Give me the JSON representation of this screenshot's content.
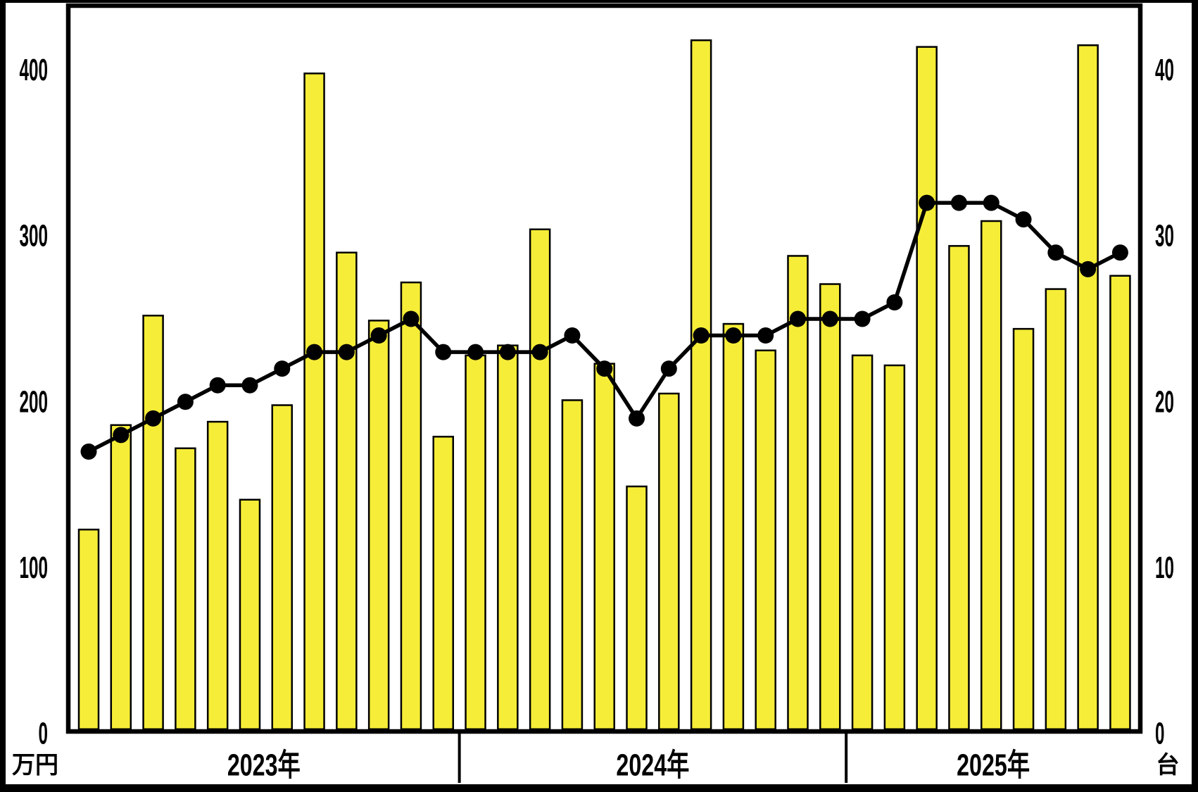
{
  "chart_data": {
    "type": "bar+line",
    "title": "",
    "left_axis": {
      "label": "万円",
      "ticks": [
        "0",
        "100",
        "200",
        "300",
        "400"
      ],
      "tick_values": [
        0,
        100,
        200,
        300,
        400
      ],
      "range": [
        0,
        437
      ]
    },
    "right_axis": {
      "label": "台",
      "ticks": [
        "0",
        "10",
        "20",
        "30",
        "40"
      ],
      "tick_values": [
        0,
        10,
        20,
        30,
        40
      ],
      "range": [
        0,
        43.7
      ]
    },
    "x_axis": {
      "unit": "month",
      "year_groups": [
        {
          "label": "2023年",
          "months": 12
        },
        {
          "label": "2024年",
          "months": 12
        },
        {
          "label": "2025年",
          "months": 9
        }
      ]
    },
    "series": [
      {
        "name": "bar-series-man-yen",
        "type": "bar",
        "axis": "left",
        "color": "#F6ED38",
        "values": [
          123,
          186,
          252,
          172,
          188,
          141,
          198,
          398,
          290,
          249,
          272,
          179,
          228,
          234,
          304,
          201,
          223,
          149,
          205,
          418,
          247,
          231,
          288,
          271,
          228,
          222,
          414,
          294,
          309,
          244,
          268,
          415,
          276
        ]
      },
      {
        "name": "line-series-dai",
        "type": "line",
        "axis": "right",
        "color": "#000000",
        "values": [
          17,
          18,
          19,
          20,
          21,
          21,
          22,
          23,
          23,
          24,
          25,
          23,
          23,
          23,
          23,
          24,
          22,
          19,
          22,
          24,
          24,
          24,
          25,
          25,
          25,
          26,
          32,
          32,
          32,
          31,
          29,
          28,
          29
        ]
      }
    ],
    "legend": "none",
    "grid": "off"
  },
  "colors": {
    "frame": "#000000",
    "background": "#FFFFFF",
    "plot_border": "#000000",
    "bar_fill": "#F6ED38",
    "bar_stroke": "#000000",
    "line": "#000000",
    "text": "#000000"
  }
}
